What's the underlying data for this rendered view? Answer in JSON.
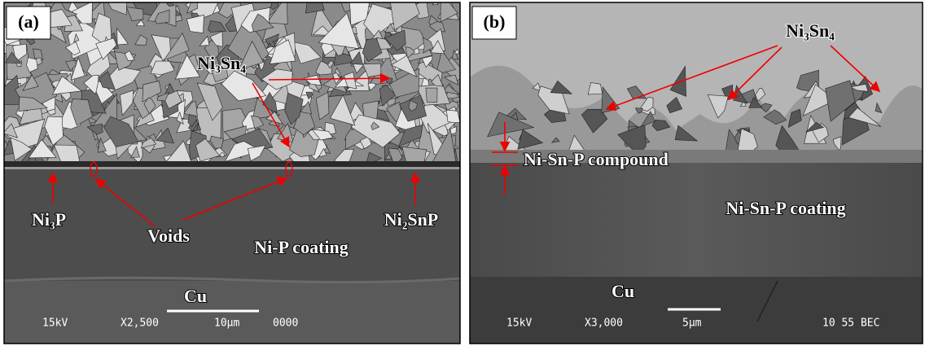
{
  "panels": [
    {
      "label": "(a)",
      "ni3sn4": "Ni₃Sn₄",
      "ni3p": "Ni₃P",
      "voids": "Voids",
      "coating": "Ni-P coating",
      "ni2snp": "Ni₂SnP",
      "cu": "Cu",
      "info": [
        "15kV",
        "X2,500",
        "10μm",
        "0000"
      ]
    },
    {
      "label": "(b)",
      "ni3sn4": "Ni₃Sn₄",
      "compound": "Ni-Sn-P compound",
      "coating": "Ni-Sn-P coating",
      "cu": "Cu",
      "info": [
        "15kV",
        "X3,000",
        "5μm",
        "10 55 BEC"
      ]
    }
  ]
}
